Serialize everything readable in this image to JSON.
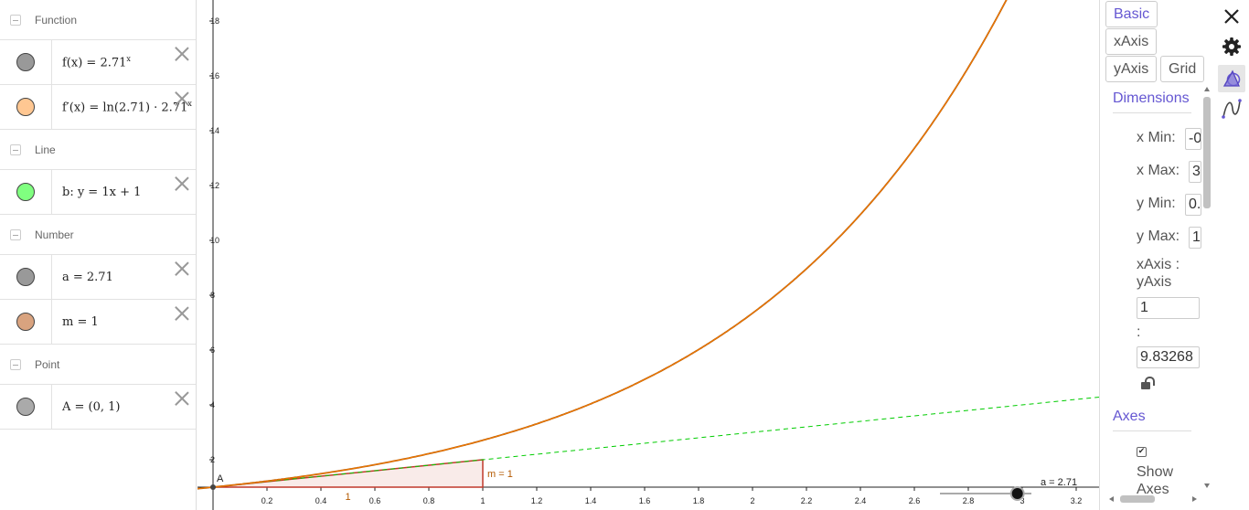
{
  "algebra": {
    "categories": {
      "function": "Function",
      "line": "Line",
      "number": "Number",
      "point": "Point"
    },
    "items": {
      "f": {
        "text": "f(x) = 2.71",
        "sup": "x",
        "color": "#999999"
      },
      "fprime": {
        "text": "f′(x) = ln(2.71) · 2.71",
        "sup": "x",
        "color": "#ffc792"
      },
      "b": {
        "text": "b: y = 1x + 1",
        "color": "#80ff80"
      },
      "a": {
        "text": "a = 2.71",
        "color": "#999999"
      },
      "m": {
        "text": "m = 1",
        "color": "#d9a37f"
      },
      "A": {
        "text": "A = (0, 1)",
        "color": "#aaaaaa"
      }
    }
  },
  "graph": {
    "x_ticks": [
      "0.2",
      "0.4",
      "0.6",
      "0.8",
      "1",
      "1.2",
      "1.4",
      "1.6",
      "1.8",
      "2",
      "2.2",
      "2.4",
      "2.6",
      "2.8",
      "3",
      "3.2"
    ],
    "y_ticks": [
      "2",
      "4",
      "6",
      "8",
      "10",
      "12",
      "14",
      "16",
      "18"
    ],
    "point_label": "A",
    "slope_label": "m = 1",
    "run_label": "1",
    "slider_label": "a = 2.71",
    "slider_value": 2.71,
    "curve_color": "#b35900",
    "fprime_color": "#ff7f00",
    "tangent_color": "#00cc00",
    "triangle_color": "#c0392b"
  },
  "chart_data": {
    "type": "line",
    "series": [
      {
        "name": "f(x) = 2.71^x",
        "function": "2.71^x"
      },
      {
        "name": "b: y = 1x + 1",
        "function": "1x + 1"
      }
    ],
    "points": [
      {
        "name": "A",
        "x": 0,
        "y": 1
      }
    ],
    "slope_triangle": {
      "m": 1,
      "run": 1
    },
    "xlim": [
      -0.03,
      3.28
    ],
    "ylim": [
      0.8,
      18.6
    ]
  },
  "props": {
    "tabs": {
      "basic": "Basic",
      "xaxis": "xAxis",
      "yaxis": "yAxis",
      "grid": "Grid"
    },
    "dimensions_title": "Dimensions",
    "xmin_label": "x Min:",
    "xmin_value": "-0",
    "xmax_label": "x Max:",
    "xmax_value": "3",
    "ymin_label": "y Min:",
    "ymin_value": "0.",
    "ymax_label": "y Max:",
    "ymax_value": "1",
    "ratio_label_1": "xAxis :",
    "ratio_label_2": "yAxis",
    "ratio_x": "1",
    "ratio_colon": ":",
    "ratio_y": "9.83268",
    "axes_title": "Axes",
    "show_axes_1": "Show",
    "show_axes_2": "Axes"
  }
}
